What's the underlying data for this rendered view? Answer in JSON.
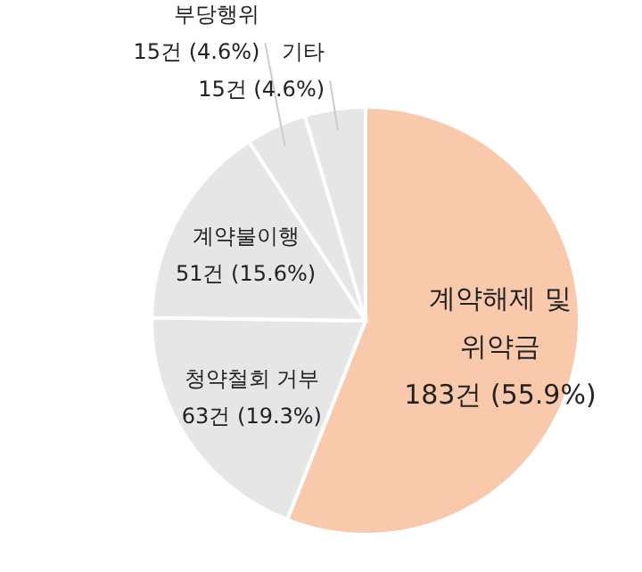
{
  "chart_data": {
    "type": "pie",
    "categories": [
      "계약해제 및 위약금",
      "청약철회 거부",
      "계약불이행",
      "부당행위",
      "기타"
    ],
    "values": [
      183,
      63,
      51,
      15,
      15
    ],
    "value_labels": [
      "183건 (55.9%)",
      "63건 (19.3%)",
      "51건 (15.6%)",
      "15건 (4.6%)",
      "15건 (4.6%)"
    ],
    "colors": [
      "#f8c9aa",
      "#e6e6e6",
      "#e6e6e6",
      "#e6e6e6",
      "#e6e6e6"
    ]
  }
}
